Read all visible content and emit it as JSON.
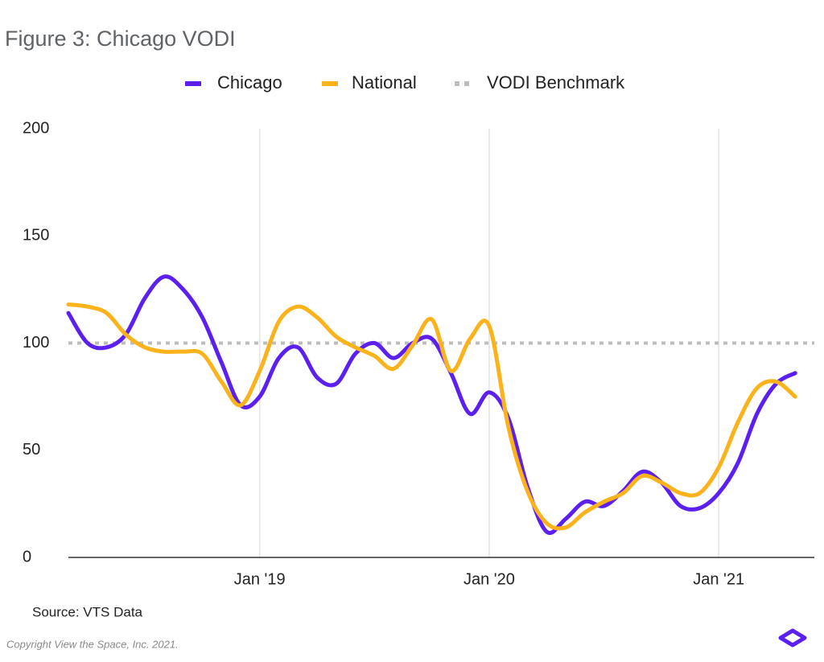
{
  "chart_data": {
    "type": "line",
    "title": "Figure 3: Chicago VODI",
    "source": "Source: VTS Data",
    "copyright": "Copyright View the Space, Inc. 2021.",
    "x": [
      "2018-03",
      "2018-04",
      "2018-05",
      "2018-06",
      "2018-07",
      "2018-08",
      "2018-09",
      "2018-10",
      "2018-11",
      "2018-12",
      "2019-01",
      "2019-02",
      "2019-03",
      "2019-04",
      "2019-05",
      "2019-06",
      "2019-07",
      "2019-08",
      "2019-09",
      "2019-10",
      "2019-11",
      "2019-12",
      "2020-01",
      "2020-02",
      "2020-03",
      "2020-04",
      "2020-05",
      "2020-06",
      "2020-07",
      "2020-08",
      "2020-09",
      "2020-10",
      "2020-11",
      "2020-12",
      "2021-01",
      "2021-02",
      "2021-03",
      "2021-04",
      "2021-05"
    ],
    "series": [
      {
        "name": "Chicago",
        "color": "#5b1ff0",
        "values": [
          114,
          100,
          98,
          104,
          121,
          131,
          125,
          112,
          91,
          71,
          75,
          93,
          98,
          84,
          81,
          95,
          100,
          93,
          100,
          102,
          86,
          67,
          77,
          65,
          33,
          12,
          18,
          26,
          24,
          31,
          40,
          35,
          24,
          23,
          30,
          44,
          67,
          81,
          86
        ]
      },
      {
        "name": "National",
        "color": "#fbb21b",
        "values": [
          118,
          117,
          114,
          104,
          98,
          96,
          96,
          95,
          82,
          71,
          87,
          110,
          117,
          112,
          103,
          98,
          94,
          88,
          99,
          111,
          87,
          102,
          108,
          61,
          31,
          16,
          14,
          21,
          26,
          30,
          38,
          35,
          30,
          30,
          42,
          63,
          79,
          82,
          75
        ]
      }
    ],
    "benchmark": {
      "name": "VODI Benchmark",
      "value": 100,
      "color": "#bdbdbd"
    },
    "xlim": [
      "2018-03",
      "2021-06"
    ],
    "xticks": [
      {
        "value": "2019-01",
        "label": "Jan '19"
      },
      {
        "value": "2020-01",
        "label": "Jan '20"
      },
      {
        "value": "2021-01",
        "label": "Jan '21"
      }
    ],
    "ylim": [
      0,
      200
    ],
    "yticks": [
      0,
      50,
      100,
      150,
      200
    ],
    "grid": true,
    "legend": "top"
  }
}
